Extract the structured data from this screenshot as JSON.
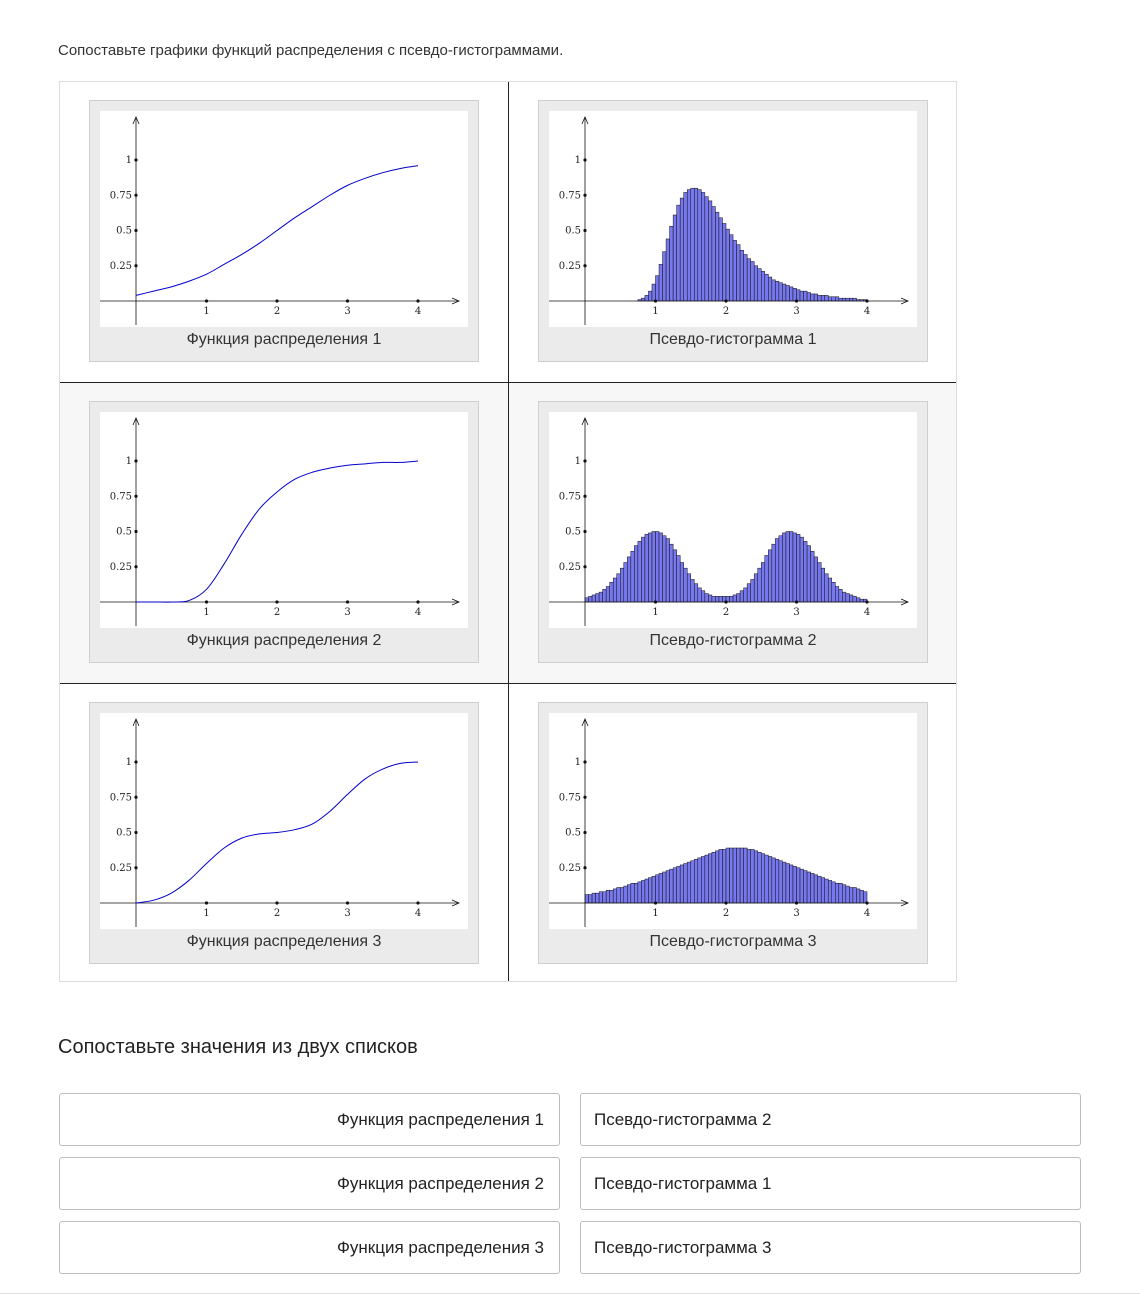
{
  "instruction": "Сопоставьте графики функций распределения с псевдо-гистограммами.",
  "colors": {
    "curve": "#0000cc",
    "bar_fill": "#7777ee",
    "bar_stroke": "#111111",
    "accent_border": "#bdbdbd"
  },
  "cards": [
    {
      "caption": "Функция распределения 1",
      "chart_data": {
        "type": "line",
        "x": [
          0,
          0.25,
          0.5,
          0.75,
          1,
          1.25,
          1.5,
          1.75,
          2,
          2.25,
          2.5,
          2.75,
          3,
          3.25,
          3.5,
          3.75,
          4
        ],
        "y": [
          0.04,
          0.07,
          0.1,
          0.14,
          0.19,
          0.26,
          0.33,
          0.41,
          0.5,
          0.59,
          0.67,
          0.75,
          0.82,
          0.87,
          0.91,
          0.94,
          0.96
        ],
        "xticks": [
          "1",
          "2",
          "3",
          "4"
        ],
        "yticks": [
          "0.25",
          "0.5",
          "0.75",
          "1"
        ],
        "xlim": [
          0,
          4
        ],
        "ylim": [
          0,
          1
        ]
      }
    },
    {
      "caption": "Псевдо-гистограмма 1",
      "chart_data": {
        "type": "bar",
        "bin_start": 0,
        "bin_width": 0.05,
        "values": [
          0,
          0,
          0,
          0,
          0,
          0,
          0,
          0,
          0,
          0,
          0,
          0,
          0,
          0,
          0,
          0.01,
          0.02,
          0.04,
          0.07,
          0.12,
          0.18,
          0.26,
          0.35,
          0.44,
          0.53,
          0.61,
          0.68,
          0.73,
          0.77,
          0.79,
          0.8,
          0.8,
          0.79,
          0.77,
          0.74,
          0.71,
          0.67,
          0.63,
          0.59,
          0.55,
          0.51,
          0.47,
          0.43,
          0.4,
          0.36,
          0.33,
          0.3,
          0.28,
          0.25,
          0.23,
          0.21,
          0.19,
          0.17,
          0.15,
          0.14,
          0.13,
          0.12,
          0.11,
          0.1,
          0.09,
          0.08,
          0.07,
          0.07,
          0.06,
          0.05,
          0.05,
          0.04,
          0.04,
          0.04,
          0.03,
          0.03,
          0.03,
          0.02,
          0.02,
          0.02,
          0.02,
          0.02,
          0.01,
          0.01,
          0.01
        ],
        "xticks": [
          "1",
          "2",
          "3",
          "4"
        ],
        "yticks": [
          "0.25",
          "0.5",
          "0.75",
          "1"
        ],
        "xlim": [
          0,
          4
        ],
        "ylim": [
          0,
          1
        ]
      }
    },
    {
      "caption": "Функция распределения 2",
      "chart_data": {
        "type": "line",
        "x": [
          0,
          0.25,
          0.5,
          0.75,
          1,
          1.25,
          1.5,
          1.75,
          2,
          2.25,
          2.5,
          2.75,
          3,
          3.25,
          3.5,
          3.75,
          4
        ],
        "y": [
          0,
          0,
          0,
          0.01,
          0.09,
          0.27,
          0.48,
          0.66,
          0.78,
          0.87,
          0.92,
          0.95,
          0.97,
          0.98,
          0.99,
          0.99,
          1
        ],
        "xticks": [
          "1",
          "2",
          "3",
          "4"
        ],
        "yticks": [
          "0.25",
          "0.5",
          "0.75",
          "1"
        ],
        "xlim": [
          0,
          4
        ],
        "ylim": [
          0,
          1
        ]
      }
    },
    {
      "caption": "Псевдо-гистограмма 2",
      "chart_data": {
        "type": "bar",
        "bin_start": 0,
        "bin_width": 0.05,
        "values": [
          0.03,
          0.04,
          0.05,
          0.06,
          0.07,
          0.09,
          0.11,
          0.14,
          0.17,
          0.2,
          0.24,
          0.28,
          0.32,
          0.36,
          0.4,
          0.43,
          0.46,
          0.48,
          0.49,
          0.5,
          0.5,
          0.49,
          0.47,
          0.45,
          0.41,
          0.37,
          0.33,
          0.28,
          0.24,
          0.2,
          0.16,
          0.13,
          0.1,
          0.08,
          0.06,
          0.05,
          0.04,
          0.04,
          0.04,
          0.04,
          0.04,
          0.04,
          0.05,
          0.06,
          0.08,
          0.1,
          0.13,
          0.16,
          0.2,
          0.24,
          0.28,
          0.33,
          0.37,
          0.41,
          0.45,
          0.47,
          0.49,
          0.5,
          0.5,
          0.49,
          0.48,
          0.46,
          0.43,
          0.4,
          0.36,
          0.32,
          0.28,
          0.24,
          0.2,
          0.17,
          0.14,
          0.11,
          0.09,
          0.07,
          0.06,
          0.05,
          0.04,
          0.03,
          0.02,
          0.02
        ],
        "xticks": [
          "1",
          "2",
          "3",
          "4"
        ],
        "yticks": [
          "0.25",
          "0.5",
          "0.75",
          "1"
        ],
        "xlim": [
          0,
          4
        ],
        "ylim": [
          0,
          1
        ]
      }
    },
    {
      "caption": "Функция распределения 3",
      "chart_data": {
        "type": "line",
        "x": [
          0,
          0.25,
          0.5,
          0.75,
          1,
          1.25,
          1.5,
          1.75,
          2,
          2.25,
          2.5,
          2.75,
          3,
          3.25,
          3.5,
          3.75,
          4
        ],
        "y": [
          0,
          0.02,
          0.07,
          0.16,
          0.28,
          0.39,
          0.46,
          0.49,
          0.5,
          0.52,
          0.56,
          0.65,
          0.77,
          0.88,
          0.95,
          0.99,
          1
        ],
        "xticks": [
          "1",
          "2",
          "3",
          "4"
        ],
        "yticks": [
          "0.25",
          "0.5",
          "0.75",
          "1"
        ],
        "xlim": [
          0,
          4
        ],
        "ylim": [
          0,
          1
        ]
      }
    },
    {
      "caption": "Псевдо-гистограмма 3",
      "chart_data": {
        "type": "bar",
        "bin_start": 0,
        "bin_width": 0.05,
        "values": [
          0.06,
          0.06,
          0.07,
          0.07,
          0.08,
          0.08,
          0.09,
          0.09,
          0.1,
          0.11,
          0.11,
          0.12,
          0.13,
          0.14,
          0.14,
          0.15,
          0.16,
          0.17,
          0.18,
          0.19,
          0.2,
          0.21,
          0.22,
          0.23,
          0.24,
          0.25,
          0.26,
          0.27,
          0.28,
          0.29,
          0.3,
          0.31,
          0.32,
          0.33,
          0.34,
          0.35,
          0.36,
          0.37,
          0.38,
          0.38,
          0.39,
          0.39,
          0.39,
          0.39,
          0.39,
          0.39,
          0.38,
          0.38,
          0.37,
          0.36,
          0.35,
          0.34,
          0.33,
          0.32,
          0.31,
          0.3,
          0.29,
          0.28,
          0.27,
          0.26,
          0.25,
          0.24,
          0.23,
          0.22,
          0.21,
          0.2,
          0.19,
          0.18,
          0.17,
          0.16,
          0.15,
          0.14,
          0.14,
          0.13,
          0.12,
          0.11,
          0.11,
          0.1,
          0.09,
          0.08
        ],
        "xticks": [
          "1",
          "2",
          "3",
          "4"
        ],
        "yticks": [
          "0.25",
          "0.5",
          "0.75",
          "1"
        ],
        "xlim": [
          0,
          4
        ],
        "ylim": [
          0,
          1
        ]
      }
    }
  ],
  "match_section": {
    "title": "Сопоставьте значения из двух списков",
    "left": [
      "Функция распределения 1",
      "Функция распределения 2",
      "Функция распределения 3"
    ],
    "right": [
      "Псевдо-гистограмма 2",
      "Псевдо-гистограмма 1",
      "Псевдо-гистограмма 3"
    ]
  }
}
